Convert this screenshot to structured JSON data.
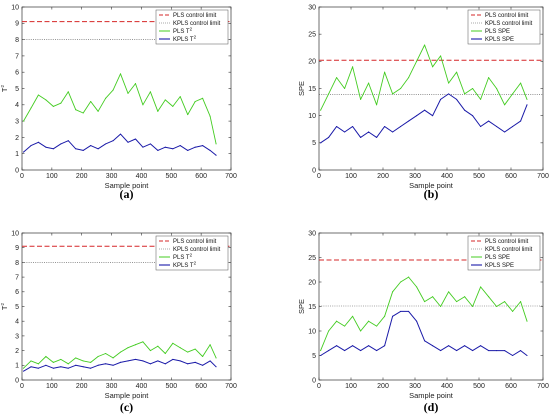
{
  "colors": {
    "pls_limit": "#d62728",
    "kpls_limit": "#555555",
    "pls_stat": "#44cc22",
    "kpls_stat": "#1a1aa8",
    "axes": "#333333"
  },
  "chart_data": [
    {
      "type": "line",
      "caption": "(a)",
      "xlabel": "Sample point",
      "ylabel": "T",
      "ylabel_sup": "2",
      "xlim": [
        0,
        700
      ],
      "ylim": [
        0,
        10
      ],
      "xticks": [
        "0",
        "100",
        "200",
        "300",
        "400",
        "500",
        "600",
        "700"
      ],
      "yticks": [
        "0",
        "1",
        "2",
        "3",
        "4",
        "5",
        "6",
        "7",
        "8",
        "9",
        "10"
      ],
      "legend_position": "top-right",
      "legend": [
        {
          "text": "PLS control limit",
          "sup": ""
        },
        {
          "text": "KPLS control limit",
          "sup": ""
        },
        {
          "text": "PLS T",
          "sup": "2"
        },
        {
          "text": "KPLS T",
          "sup": "2"
        }
      ],
      "limits": {
        "pls": 9.1,
        "kpls": 8.0
      },
      "series": [
        {
          "key": "pls",
          "x": [
            5,
            30,
            55,
            80,
            105,
            130,
            155,
            180,
            205,
            230,
            255,
            280,
            305,
            330,
            355,
            380,
            405,
            430,
            455,
            480,
            505,
            530,
            555,
            580,
            605,
            630,
            650
          ],
          "values": [
            3.0,
            3.8,
            4.6,
            4.3,
            3.9,
            4.1,
            4.8,
            3.7,
            3.5,
            4.2,
            3.6,
            4.4,
            4.9,
            5.9,
            4.7,
            5.3,
            4.0,
            4.8,
            3.6,
            4.3,
            3.9,
            4.5,
            3.4,
            4.2,
            4.4,
            3.3,
            1.6
          ]
        },
        {
          "key": "kpls",
          "x": [
            5,
            30,
            55,
            80,
            105,
            130,
            155,
            180,
            205,
            230,
            255,
            280,
            305,
            330,
            355,
            380,
            405,
            430,
            455,
            480,
            505,
            530,
            555,
            580,
            605,
            630,
            650
          ],
          "values": [
            1.1,
            1.5,
            1.7,
            1.4,
            1.3,
            1.6,
            1.8,
            1.3,
            1.2,
            1.5,
            1.3,
            1.6,
            1.8,
            2.2,
            1.7,
            1.9,
            1.4,
            1.6,
            1.2,
            1.4,
            1.3,
            1.5,
            1.2,
            1.4,
            1.5,
            1.2,
            0.9
          ]
        }
      ]
    },
    {
      "type": "line",
      "caption": "(b)",
      "xlabel": "Sample point",
      "ylabel": "SPE",
      "ylabel_sup": "",
      "xlim": [
        0,
        700
      ],
      "ylim": [
        0,
        30
      ],
      "xticks": [
        "0",
        "100",
        "200",
        "300",
        "400",
        "500",
        "600",
        "700"
      ],
      "yticks": [
        "0",
        "5",
        "10",
        "15",
        "20",
        "25",
        "30"
      ],
      "legend_position": "top-right",
      "legend": [
        {
          "text": "PLS control limit",
          "sup": ""
        },
        {
          "text": "KPLS control limit",
          "sup": ""
        },
        {
          "text": "PLS SPE",
          "sup": ""
        },
        {
          "text": "KPLS SPE",
          "sup": ""
        }
      ],
      "limits": {
        "pls": 20.2,
        "kpls": 13.9
      },
      "series": [
        {
          "key": "pls",
          "x": [
            5,
            30,
            55,
            80,
            105,
            130,
            155,
            180,
            205,
            230,
            255,
            280,
            305,
            330,
            355,
            380,
            405,
            430,
            455,
            480,
            505,
            530,
            555,
            580,
            605,
            630,
            650
          ],
          "values": [
            11,
            14,
            17,
            15,
            19,
            13,
            16,
            12,
            18,
            14,
            15,
            17,
            20,
            23,
            19,
            21,
            16,
            18,
            14,
            15,
            13,
            17,
            15,
            12,
            14,
            16,
            13
          ]
        },
        {
          "key": "kpls",
          "x": [
            5,
            30,
            55,
            80,
            105,
            130,
            155,
            180,
            205,
            230,
            255,
            280,
            305,
            330,
            355,
            380,
            405,
            430,
            455,
            480,
            505,
            530,
            555,
            580,
            605,
            630,
            650
          ],
          "values": [
            5,
            6,
            8,
            7,
            8,
            6,
            7,
            6,
            8,
            7,
            8,
            9,
            10,
            11,
            10,
            13,
            14,
            13,
            11,
            10,
            8,
            9,
            8,
            7,
            8,
            9,
            12
          ]
        }
      ]
    },
    {
      "type": "line",
      "caption": "(c)",
      "xlabel": "Sample point",
      "ylabel": "T",
      "ylabel_sup": "2",
      "xlim": [
        0,
        700
      ],
      "ylim": [
        0,
        10
      ],
      "xticks": [
        "0",
        "100",
        "200",
        "300",
        "400",
        "500",
        "600",
        "700"
      ],
      "yticks": [
        "0",
        "1",
        "2",
        "3",
        "4",
        "5",
        "6",
        "7",
        "8",
        "9",
        "10"
      ],
      "legend_position": "top-right",
      "legend": [
        {
          "text": "PLS control limit",
          "sup": ""
        },
        {
          "text": "KPLS control limit",
          "sup": ""
        },
        {
          "text": "PLS T",
          "sup": "2"
        },
        {
          "text": "KPLS T",
          "sup": "2"
        }
      ],
      "limits": {
        "pls": 9.1,
        "kpls": 8.0
      },
      "series": [
        {
          "key": "pls",
          "x": [
            5,
            30,
            55,
            80,
            105,
            130,
            155,
            180,
            205,
            230,
            255,
            280,
            305,
            330,
            355,
            380,
            405,
            430,
            455,
            480,
            505,
            530,
            555,
            580,
            605,
            630,
            650
          ],
          "values": [
            0.8,
            1.3,
            1.1,
            1.6,
            1.2,
            1.4,
            1.1,
            1.5,
            1.3,
            1.2,
            1.6,
            1.8,
            1.5,
            1.9,
            2.2,
            2.4,
            2.6,
            2.0,
            2.3,
            1.8,
            2.5,
            2.2,
            1.9,
            2.1,
            1.6,
            2.4,
            1.5
          ]
        },
        {
          "key": "kpls",
          "x": [
            5,
            30,
            55,
            80,
            105,
            130,
            155,
            180,
            205,
            230,
            255,
            280,
            305,
            330,
            355,
            380,
            405,
            430,
            455,
            480,
            505,
            530,
            555,
            580,
            605,
            630,
            650
          ],
          "values": [
            0.6,
            0.9,
            0.8,
            1.0,
            0.8,
            0.9,
            0.8,
            1.0,
            0.9,
            0.8,
            1.0,
            1.1,
            1.0,
            1.2,
            1.3,
            1.4,
            1.3,
            1.1,
            1.3,
            1.1,
            1.4,
            1.3,
            1.1,
            1.2,
            1.0,
            1.3,
            0.9
          ]
        }
      ]
    },
    {
      "type": "line",
      "caption": "(d)",
      "xlabel": "Sample point",
      "ylabel": "SPE",
      "ylabel_sup": "",
      "xlim": [
        0,
        700
      ],
      "ylim": [
        0,
        30
      ],
      "xticks": [
        "0",
        "100",
        "200",
        "300",
        "400",
        "500",
        "600",
        "700"
      ],
      "yticks": [
        "0",
        "5",
        "10",
        "15",
        "20",
        "25",
        "30"
      ],
      "legend_position": "top-right",
      "legend": [
        {
          "text": "PLS control limit",
          "sup": ""
        },
        {
          "text": "KPLS control limit",
          "sup": ""
        },
        {
          "text": "PLS SPE",
          "sup": ""
        },
        {
          "text": "KPLS SPE",
          "sup": ""
        }
      ],
      "limits": {
        "pls": 24.5,
        "kpls": 15.1
      },
      "series": [
        {
          "key": "pls",
          "x": [
            5,
            30,
            55,
            80,
            105,
            130,
            155,
            180,
            205,
            230,
            255,
            280,
            305,
            330,
            355,
            380,
            405,
            430,
            455,
            480,
            505,
            530,
            555,
            580,
            605,
            630,
            650
          ],
          "values": [
            6,
            10,
            12,
            11,
            13,
            10,
            12,
            11,
            13,
            18,
            20,
            21,
            19,
            16,
            17,
            15,
            18,
            16,
            17,
            15,
            19,
            17,
            15,
            16,
            14,
            16,
            12
          ]
        },
        {
          "key": "kpls",
          "x": [
            5,
            30,
            55,
            80,
            105,
            130,
            155,
            180,
            205,
            230,
            255,
            280,
            305,
            330,
            355,
            380,
            405,
            430,
            455,
            480,
            505,
            530,
            555,
            580,
            605,
            630,
            650
          ],
          "values": [
            5,
            6,
            7,
            6,
            7,
            6,
            7,
            6,
            7,
            13,
            14,
            14,
            12,
            8,
            7,
            6,
            7,
            6,
            7,
            6,
            7,
            6,
            6,
            6,
            5,
            6,
            5
          ]
        }
      ]
    }
  ]
}
